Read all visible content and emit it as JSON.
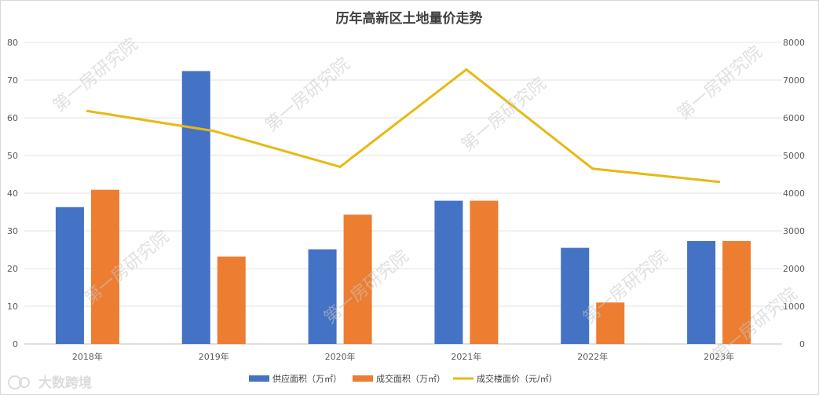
{
  "chart_data": {
    "type": "bar",
    "title": "历年高新区土地量价走势",
    "categories": [
      "2018年",
      "2019年",
      "2020年",
      "2021年",
      "2022年",
      "2023年"
    ],
    "series": [
      {
        "name": "供应面积（万㎡）",
        "type": "bar",
        "axis": "left",
        "color": "#4472C4",
        "values": [
          36.3,
          72.4,
          25.1,
          38.0,
          25.5,
          27.3
        ]
      },
      {
        "name": "成交面积（万㎡）",
        "type": "bar",
        "axis": "left",
        "color": "#ED7D31",
        "values": [
          40.9,
          23.2,
          34.3,
          38.0,
          11.0,
          27.3
        ]
      },
      {
        "name": "成交楼面价（元/㎡）",
        "type": "line",
        "axis": "right",
        "color": "#E8B913",
        "values": [
          6180,
          5650,
          4700,
          7280,
          4650,
          4300
        ]
      }
    ],
    "ylim": [
      0,
      80
    ],
    "yticks": [
      0,
      10,
      20,
      30,
      40,
      50,
      60,
      70,
      80
    ],
    "y2lim": [
      0,
      8000
    ],
    "y2ticks": [
      0,
      1000,
      2000,
      3000,
      4000,
      5000,
      6000,
      7000,
      8000
    ],
    "xlabel": "",
    "ylabel": "",
    "y2label": "",
    "grid": true,
    "legend_position": "bottom"
  },
  "watermark": {
    "text": "第一房研究院"
  },
  "logo": {
    "text": "大数跨境"
  }
}
